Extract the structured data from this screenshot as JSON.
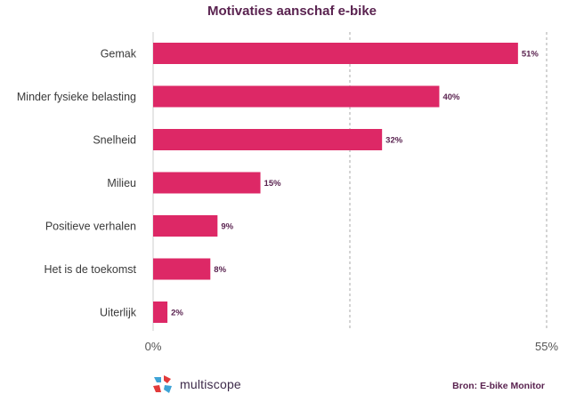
{
  "chart_data": {
    "type": "bar",
    "orientation": "horizontal",
    "title": "Motivaties aanschaf e-bike",
    "categories": [
      "Gemak",
      "Minder fysieke belasting",
      "Snelheid",
      "Milieu",
      "Positieve verhalen",
      "Het is de toekomst",
      "Uiterlijk"
    ],
    "values": [
      51,
      40,
      32,
      15,
      9,
      8,
      2
    ],
    "value_labels": [
      "51%",
      "40%",
      "32%",
      "15%",
      "9%",
      "8%",
      "2%"
    ],
    "xlim": [
      0,
      55
    ],
    "ticks": [
      {
        "value": 0,
        "label": "0%"
      },
      {
        "value": 55,
        "label": "55%"
      }
    ],
    "gridlines": [
      0,
      27.5,
      55
    ],
    "grid": true,
    "bar_color": "#dd2866"
  },
  "logo": {
    "text": "multiscope"
  },
  "source": "Bron: E-bike Monitor",
  "colors": {
    "title": "#5a2350",
    "label": "#3a3a3a",
    "grid": "#aaaaaa"
  }
}
